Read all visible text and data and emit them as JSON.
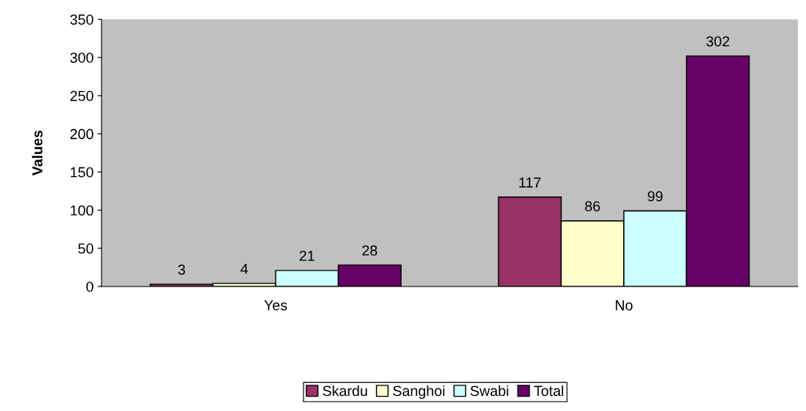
{
  "chart_data": {
    "type": "bar",
    "ylabel": "Values",
    "categories": [
      "Yes",
      "No"
    ],
    "series": [
      {
        "name": "Skardu",
        "color": "#993366",
        "values": [
          3,
          117
        ]
      },
      {
        "name": "Sanghoi",
        "color": "#ffffcc",
        "values": [
          4,
          86
        ]
      },
      {
        "name": "Swabi",
        "color": "#ccffff",
        "values": [
          21,
          99
        ]
      },
      {
        "name": "Total",
        "color": "#660066",
        "values": [
          28,
          302
        ]
      }
    ],
    "ylim": [
      0,
      350
    ],
    "yticks": [
      0,
      50,
      100,
      150,
      200,
      250,
      300,
      350
    ],
    "grid": false,
    "legend": "bottom",
    "data_labels": true
  }
}
